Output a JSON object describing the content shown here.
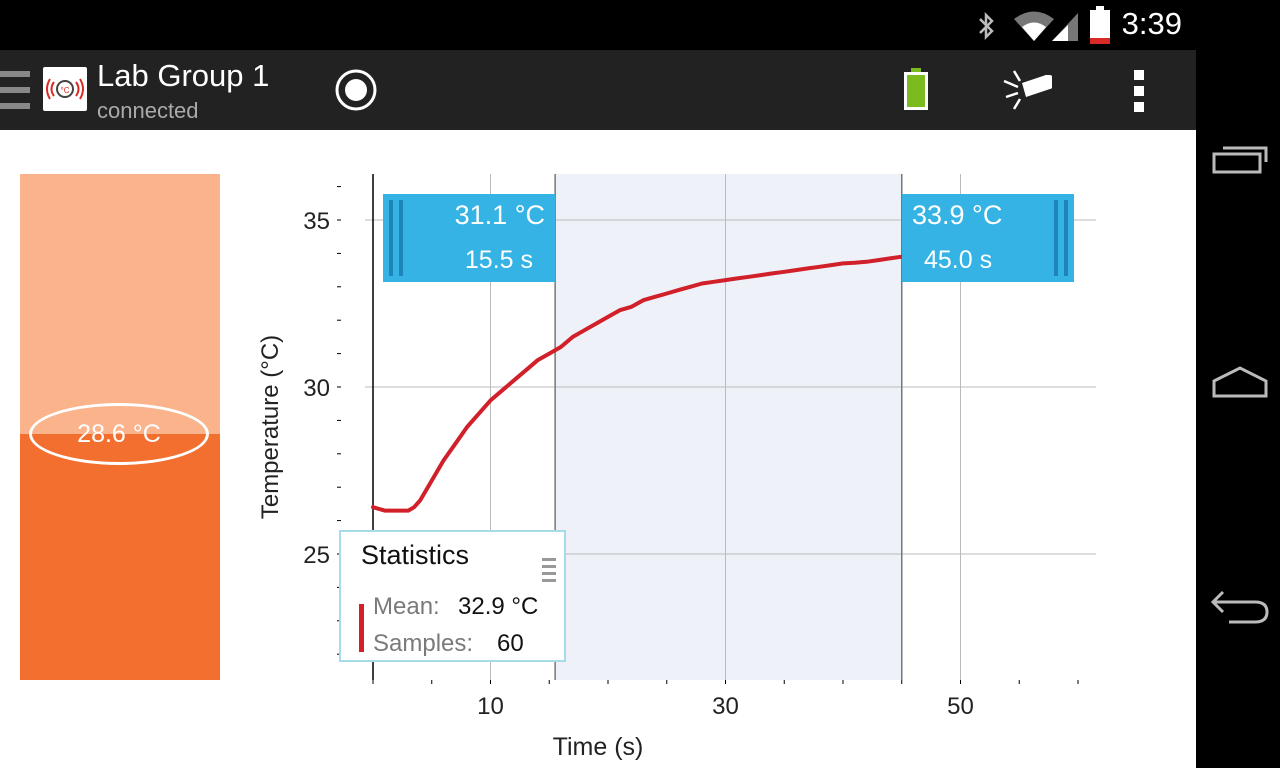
{
  "status_bar": {
    "time": "3:39"
  },
  "app_bar": {
    "title": "Lab Group 1",
    "subtitle": "connected"
  },
  "thermometer": {
    "reading": "28.6 °C",
    "fill_fraction": 0.487
  },
  "chart_data": {
    "type": "line",
    "xlabel": "Time (s)",
    "ylabel": "Temperature (°C)",
    "x_ticks": [
      10,
      30,
      50
    ],
    "y_ticks": [
      25,
      30,
      35
    ],
    "xlim": [
      0,
      60
    ],
    "ylim": [
      21.2,
      36.2
    ],
    "grid": true,
    "selection": [
      15.5,
      45.0
    ],
    "series": [
      {
        "color": "#d1202a",
        "x": [
          0,
          1,
          2,
          3,
          3.5,
          4,
          5,
          6,
          7,
          8,
          9,
          10,
          11,
          12,
          13,
          14,
          15,
          15.5,
          16,
          17,
          18,
          19,
          20,
          21,
          22,
          23,
          24,
          25,
          26,
          27,
          28,
          29,
          30,
          31,
          32,
          33,
          34,
          35,
          36,
          37,
          38,
          39,
          40,
          41,
          42,
          43,
          44,
          45
        ],
        "y": [
          26.4,
          26.3,
          26.3,
          26.3,
          26.4,
          26.6,
          27.2,
          27.8,
          28.3,
          28.8,
          29.2,
          29.6,
          29.9,
          30.2,
          30.5,
          30.8,
          31.0,
          31.1,
          31.2,
          31.5,
          31.7,
          31.9,
          32.1,
          32.3,
          32.4,
          32.6,
          32.7,
          32.8,
          32.9,
          33.0,
          33.1,
          33.15,
          33.2,
          33.25,
          33.3,
          33.35,
          33.4,
          33.45,
          33.5,
          33.55,
          33.6,
          33.65,
          33.7,
          33.72,
          33.75,
          33.8,
          33.85,
          33.9
        ]
      }
    ]
  },
  "markers": {
    "left": {
      "temp": "31.1 °C",
      "time": "15.5 s"
    },
    "right": {
      "temp": "33.9 °C",
      "time": "45.0 s"
    }
  },
  "stats": {
    "title": "Statistics",
    "mean_label": "Mean:",
    "mean_value": "32.9 °C",
    "samples_label": "Samples:",
    "samples_value": "60",
    "color": "#d1202a"
  },
  "icons": [
    "bluetooth-icon",
    "wifi-icon",
    "signal-icon",
    "battery-icon",
    "menu-icon",
    "app-logo-icon",
    "record-icon",
    "sensor-battery-icon",
    "flashlight-icon",
    "overflow-menu-icon",
    "recent-apps-icon",
    "home-icon",
    "back-icon"
  ]
}
